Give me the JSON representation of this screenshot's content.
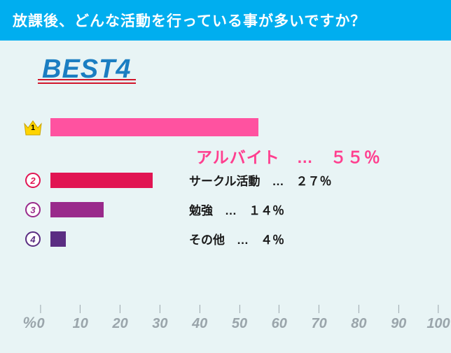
{
  "header": {
    "title": "放課後、どんな活動を行っている事が多いですか？"
  },
  "best_label": "BEST4",
  "chart": {
    "type": "bar",
    "orientation": "horizontal",
    "xlim": [
      0,
      100
    ],
    "xtick_step": 10,
    "xticks": [
      0,
      10,
      20,
      30,
      40,
      50,
      60,
      70,
      80,
      90,
      100
    ],
    "background_color": "#e8f4f5",
    "axis_color": "#9aa5ab",
    "percent_symbol": "％",
    "items": [
      {
        "rank": 1,
        "rank_style": "crown",
        "crown_fill": "#ffd400",
        "crown_stroke": "#c9a400",
        "label": "アルバイト",
        "value": 55,
        "display": "アルバイト　…　５５％",
        "bar_color": "#ff52a0",
        "label_color": "#ff3f8f",
        "label_fontsize": 23
      },
      {
        "rank": 2,
        "rank_style": "circle",
        "badge_color": "#e11553",
        "label": "サークル活動",
        "value": 27,
        "display": "サークル活動　…　２７％",
        "bar_color": "#e11553",
        "label_color": "#1a1a1a",
        "label_fontsize": 17
      },
      {
        "rank": 3,
        "rank_style": "circle",
        "badge_color": "#992a8b",
        "label": "勉強",
        "value": 14,
        "display": "勉強　…　１４％",
        "bar_color": "#992a8b",
        "label_color": "#1a1a1a",
        "label_fontsize": 17
      },
      {
        "rank": 4,
        "rank_style": "circle",
        "badge_color": "#5a2d82",
        "label": "その他",
        "value": 4,
        "display": "その他　…　４％",
        "bar_color": "#5a2d82",
        "label_color": "#1a1a1a",
        "label_fontsize": 17
      }
    ]
  },
  "axis_unit_label": "%"
}
